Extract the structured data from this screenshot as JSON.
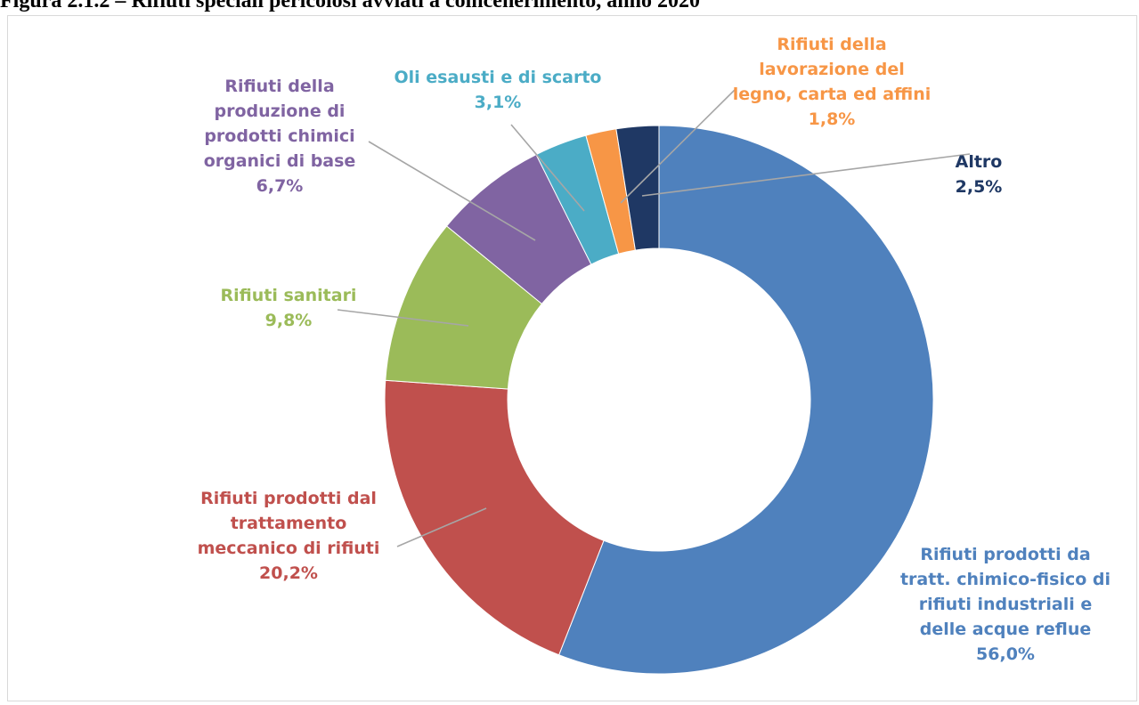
{
  "figure_title": "Figura 2.1.2 – Rifiuti speciali pericolosi avviati a coincenerimento, anno 2020",
  "chart_data": {
    "type": "pie",
    "subtype": "donut",
    "title": "",
    "slices": [
      {
        "label": "Rifiuti prodotti da\ntratt. chimico-fisico di\nrifiuti industriali e\ndelle acque reflue",
        "value": 56.0,
        "value_label": "56,0%",
        "color": "#4F81BD"
      },
      {
        "label": "Rifiuti prodotti dal\ntrattamento\nmeccanico di rifiuti",
        "value": 20.2,
        "value_label": "20,2%",
        "color": "#C0504D"
      },
      {
        "label": "Rifiuti sanitari",
        "value": 9.8,
        "value_label": "9,8%",
        "color": "#9BBB59"
      },
      {
        "label": "Rifiuti della\nproduzione di\nprodotti chimici\norganici di base",
        "value": 6.7,
        "value_label": "6,7%",
        "color": "#8064A2"
      },
      {
        "label": "Oli esausti e di scarto",
        "value": 3.1,
        "value_label": "3,1%",
        "color": "#4BACC6"
      },
      {
        "label": "Rifiuti della\nlavorazione del\nlegno, carta ed affini",
        "value": 1.8,
        "value_label": "1,8%",
        "color": "#F79646"
      },
      {
        "label": "Altro",
        "value": 2.5,
        "value_label": "2,5%",
        "color": "#1F3864"
      }
    ],
    "legend": "none",
    "leader_line_color": "#a6a6a6"
  }
}
